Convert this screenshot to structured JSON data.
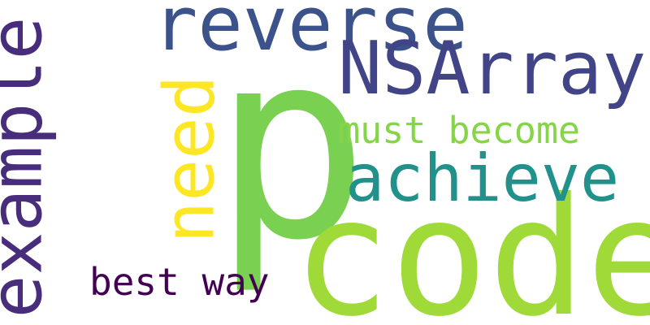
{
  "words": [
    {
      "id": "p",
      "text": "p",
      "color": "#7ad151",
      "orientation": "horizontal"
    },
    {
      "id": "code",
      "text": "code",
      "color": "#a0da39",
      "orientation": "horizontal"
    },
    {
      "id": "reverse",
      "text": "reverse",
      "color": "#3b528b",
      "orientation": "horizontal"
    },
    {
      "id": "NSArray",
      "text": "NSArray",
      "color": "#414487",
      "orientation": "horizontal"
    },
    {
      "id": "achieve",
      "text": "achieve",
      "color": "#21918c",
      "orientation": "horizontal"
    },
    {
      "id": "example",
      "text": "example",
      "color": "#472d7b",
      "orientation": "vertical"
    },
    {
      "id": "need",
      "text": "need",
      "color": "#fde725",
      "orientation": "vertical"
    },
    {
      "id": "must-become",
      "text": "must become",
      "color": "#86d549",
      "orientation": "horizontal"
    },
    {
      "id": "best-way",
      "text": "best way",
      "color": "#440154",
      "orientation": "horizontal"
    }
  ]
}
